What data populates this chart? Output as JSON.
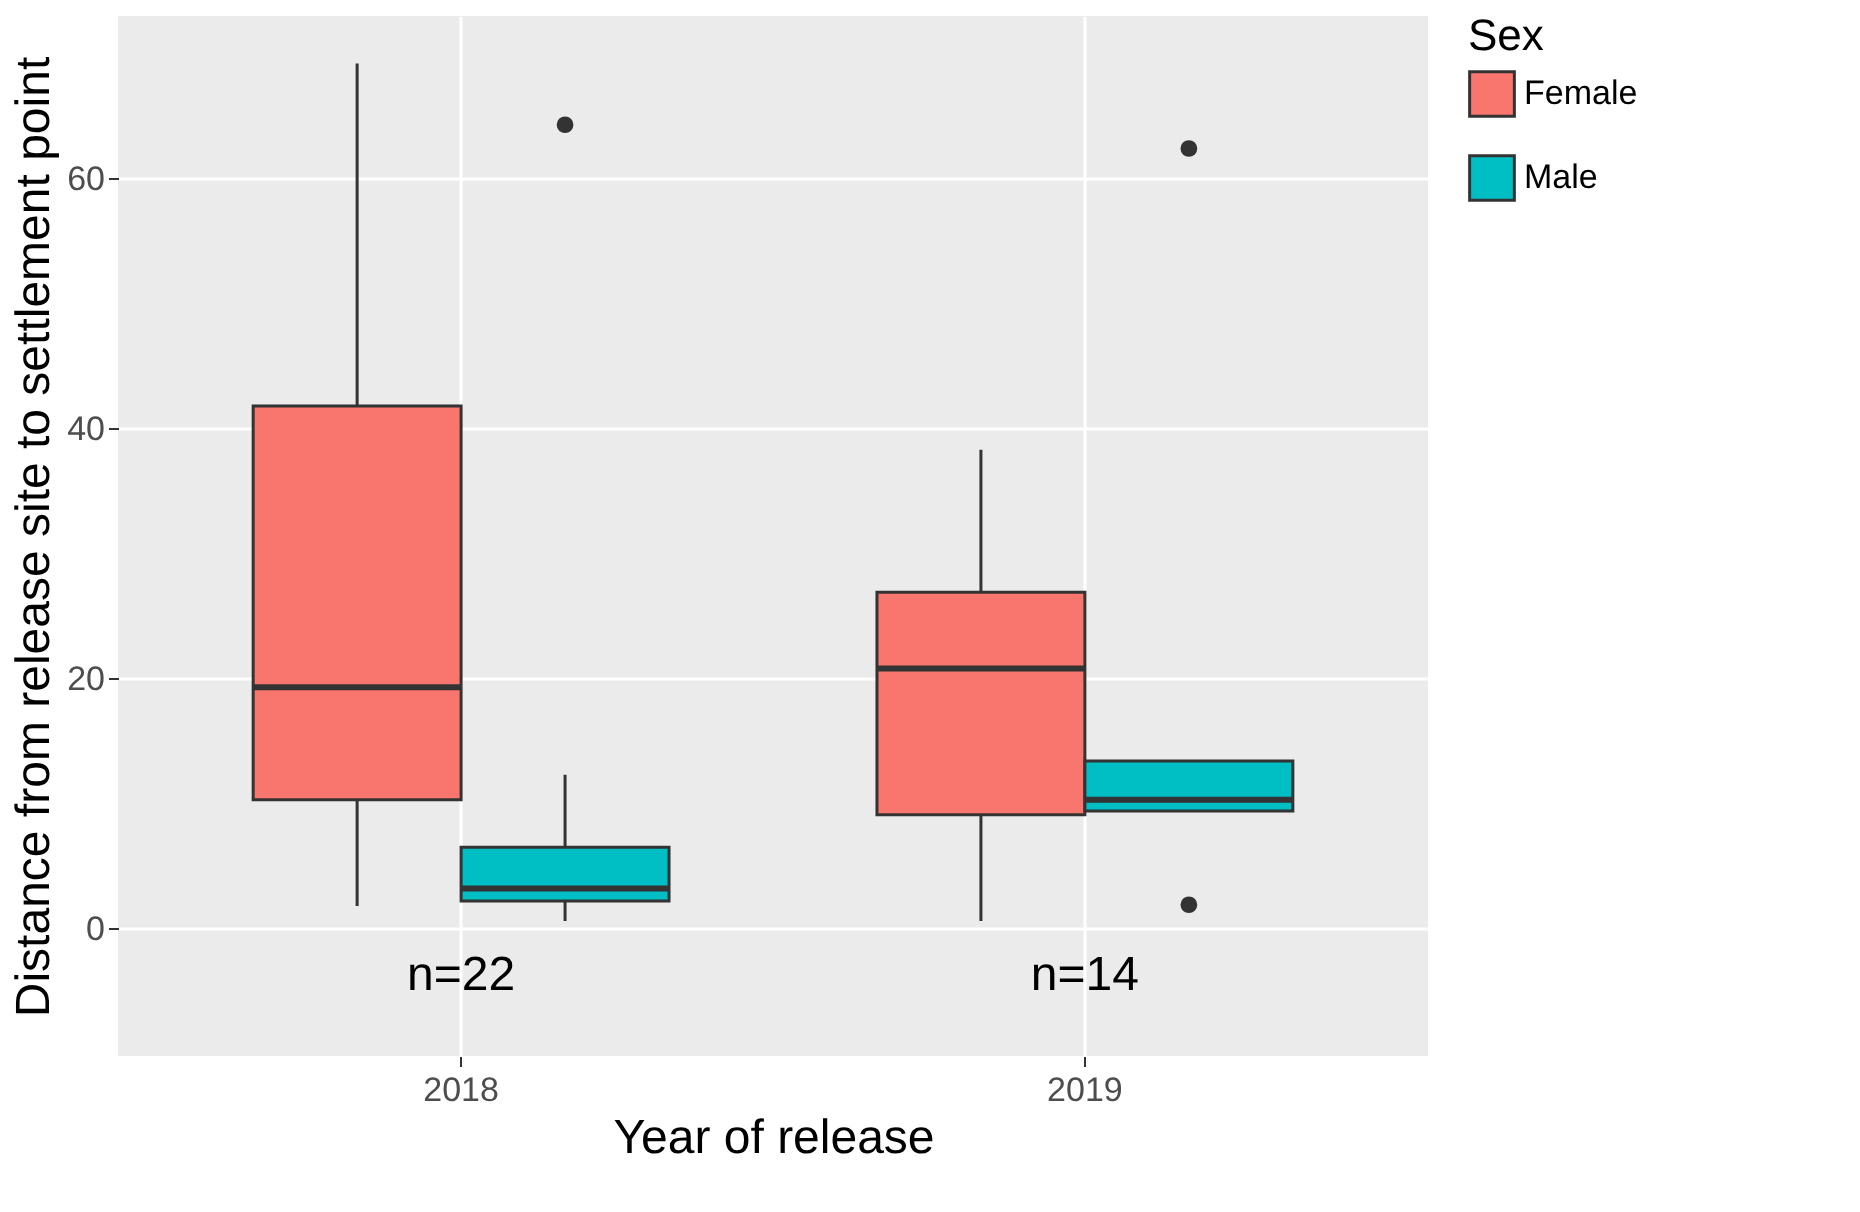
{
  "chart_data": {
    "type": "box",
    "xlabel": "Year of release",
    "ylabel": "Distance from release site to settlement point",
    "legend_title": "Sex",
    "categories": [
      "2018",
      "2019"
    ],
    "series": [
      {
        "name": "Female",
        "color": "#f8766d",
        "boxes": [
          {
            "low": 1.8,
            "q1": 10.3,
            "median": 19.3,
            "q3": 41.8,
            "high": 69.2
          },
          {
            "low": 0.6,
            "q1": 9.1,
            "median": 20.8,
            "q3": 26.9,
            "high": 38.3
          }
        ]
      },
      {
        "name": "Male",
        "color": "#00bfc4",
        "boxes": [
          {
            "low": 0.6,
            "q1": 2.2,
            "median": 3.2,
            "q3": 6.5,
            "high": 12.3,
            "outliers": [
              64.3
            ]
          },
          {
            "low": 9.4,
            "q1": 9.4,
            "median": 10.3,
            "q3": 13.4,
            "high": 13.4,
            "outliers": [
              62.4,
              1.9
            ]
          }
        ]
      }
    ],
    "ylim": [
      -10.2,
      73
    ],
    "yticks": [
      0,
      20,
      40,
      60
    ],
    "grid": true,
    "legend": "right",
    "annotations": [
      "n=22",
      "n=14"
    ]
  }
}
